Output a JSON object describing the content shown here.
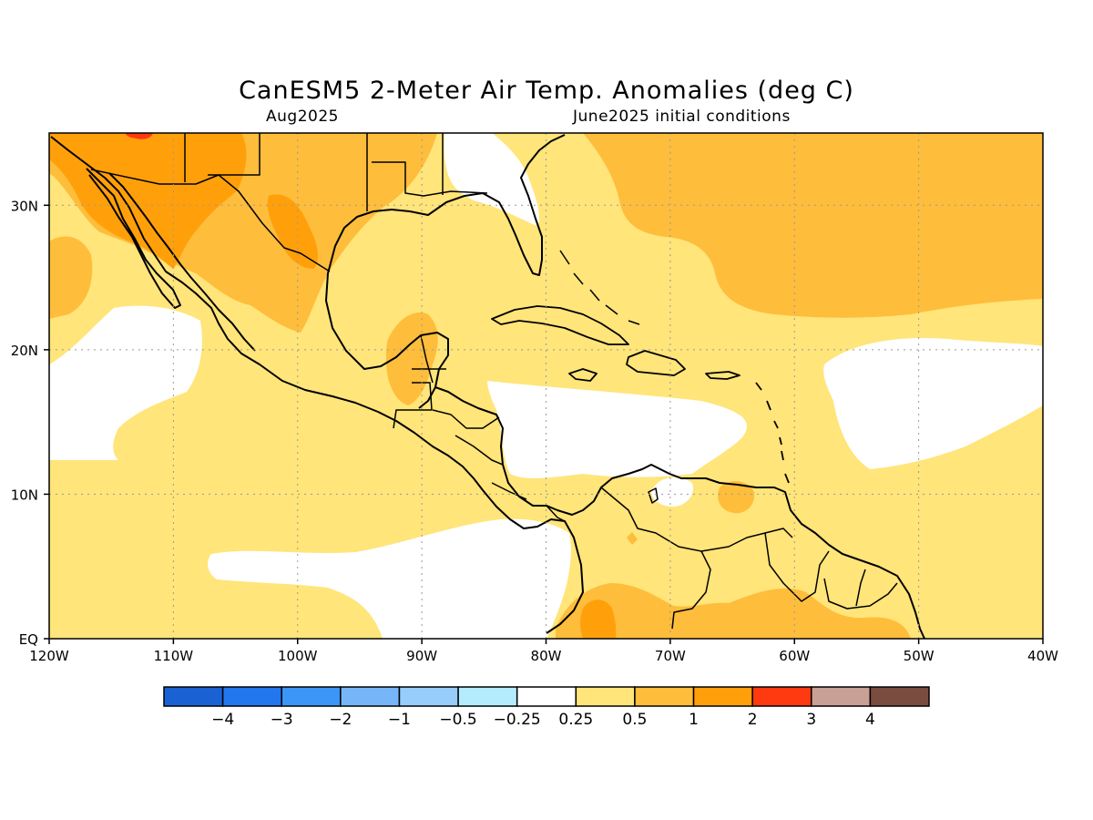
{
  "title": "CanESM5 2-Meter Air Temp. Anomalies (deg C)",
  "valid_month": "Aug2025",
  "init_conditions": "June2025 initial conditions",
  "map": {
    "lon_labels": [
      "120W",
      "110W",
      "100W",
      "90W",
      "80W",
      "70W",
      "60W",
      "50W",
      "40W"
    ],
    "lat_labels": [
      "EQ",
      "10N",
      "20N",
      "30N"
    ],
    "lon_range": [
      -120,
      -40
    ],
    "lat_range": [
      0,
      35
    ],
    "grid": "dotted"
  },
  "colorbar": {
    "colors": [
      "#1a62d4",
      "#2276ee",
      "#3c96f8",
      "#76b6f8",
      "#96cdfb",
      "#b4ecfd",
      "#ffffff",
      "#ffe57a",
      "#ffbd3c",
      "#ffa00a",
      "#ff3a10",
      "#c8a096",
      "#7a4c40"
    ],
    "labels": [
      "-4",
      "-3",
      "-2",
      "-1",
      "-0.5",
      "-0.25",
      "0.25",
      "0.5",
      "1",
      "2",
      "3",
      "4"
    ]
  },
  "shading_colors": {
    "near_zero": "#ffffff",
    "c_0_25_0_5": "#ffe57a",
    "c_0_5_1": "#ffbd3c",
    "c_1_2": "#ffa00a",
    "c_2_3": "#ff3a10"
  }
}
